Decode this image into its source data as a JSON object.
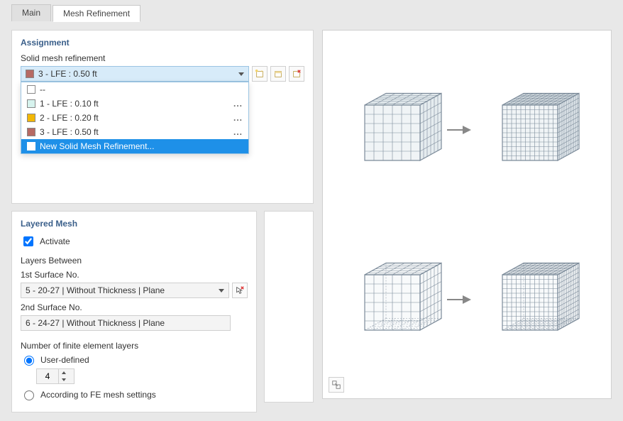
{
  "tabs": {
    "main": "Main",
    "mesh": "Mesh Refinement",
    "selected": "mesh"
  },
  "assignment": {
    "title": "Assignment",
    "label": "Solid mesh refinement",
    "selected": {
      "swatch": "#b66a64",
      "text": "3 - LFE : 0.50 ft"
    },
    "options": [
      {
        "swatch": "#ffffff",
        "text": "--",
        "ellipsis": false
      },
      {
        "swatch": "#d7f3ee",
        "text": "1 - LFE : 0.10 ft",
        "ellipsis": true
      },
      {
        "swatch": "#f2b705",
        "text": "2 - LFE : 0.20 ft",
        "ellipsis": true
      },
      {
        "swatch": "#b66a64",
        "text": "3 - LFE : 0.50 ft",
        "ellipsis": true
      },
      {
        "swatch": "#ffffff",
        "text": "New Solid Mesh Refinement...",
        "ellipsis": false,
        "selected": true
      }
    ],
    "btn_new": "new-icon",
    "btn_lib": "library-icon",
    "btn_del": "delete-icon"
  },
  "layered": {
    "title": "Layered Mesh",
    "activate_label": "Activate",
    "activate_checked": true,
    "layers_between": "Layers Between",
    "surf1_label": "1st Surface No.",
    "surf1_value": "5 - 20-27 | Without Thickness | Plane",
    "surf2_label": "2nd Surface No.",
    "surf2_value": "6 - 24-27 | Without Thickness | Plane",
    "nlayers_label": "Number of finite element layers",
    "radio_user": "User-defined",
    "radio_fe": "According to FE mesh settings",
    "radio_selected": "user",
    "nlayers_value": "4"
  },
  "colors": {
    "cube_line": "#7b8a99",
    "cube_fill": "#e5ecef",
    "accent": "#1e90e8"
  }
}
